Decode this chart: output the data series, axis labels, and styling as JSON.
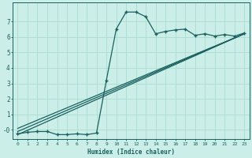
{
  "xlabel": "Humidex (Indice chaleur)",
  "ylabel": "",
  "xlim": [
    -0.5,
    23.5
  ],
  "ylim": [
    -0.6,
    8.2
  ],
  "xticks": [
    0,
    1,
    2,
    3,
    4,
    5,
    6,
    7,
    8,
    9,
    10,
    11,
    12,
    13,
    14,
    15,
    16,
    17,
    18,
    19,
    20,
    21,
    22,
    23
  ],
  "yticks": [
    0,
    1,
    2,
    3,
    4,
    5,
    6,
    7
  ],
  "bg_color": "#cceee8",
  "grid_color": "#aaddcc",
  "line_color": "#1a6060",
  "line_width": 0.9,
  "marker": "+",
  "marker_size": 3.5,
  "curve1_x": [
    0,
    1,
    2,
    3,
    4,
    5,
    6,
    7,
    8,
    9,
    10,
    11,
    12,
    13,
    14,
    15,
    16,
    17,
    18,
    19,
    20,
    21,
    22,
    23
  ],
  "curve1_y": [
    -0.25,
    -0.15,
    -0.1,
    -0.1,
    -0.3,
    -0.3,
    -0.25,
    -0.3,
    -0.2,
    3.2,
    6.5,
    7.6,
    7.6,
    7.3,
    6.2,
    6.35,
    6.45,
    6.5,
    6.1,
    6.2,
    6.05,
    6.15,
    6.05,
    6.25
  ],
  "line1_x": [
    0,
    23
  ],
  "line1_y": [
    -0.3,
    6.2
  ],
  "line2_x": [
    0,
    23
  ],
  "line2_y": [
    -0.1,
    6.2
  ],
  "line3_x": [
    0,
    23
  ],
  "line3_y": [
    0.1,
    6.2
  ]
}
